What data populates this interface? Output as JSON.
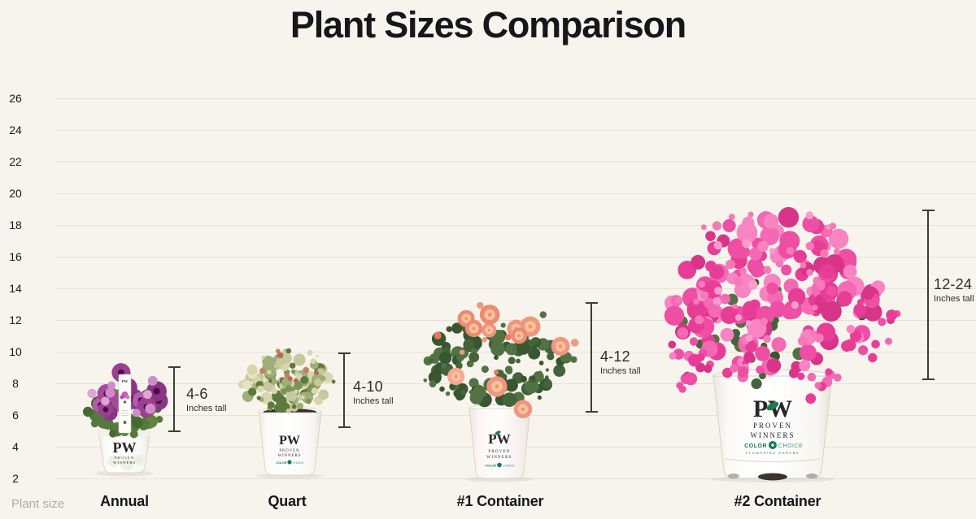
{
  "chart_data": {
    "type": "pictorial-bar",
    "title": "Plant Sizes Comparison",
    "xlabel": "Plant size",
    "ylabel": "",
    "units_label": "Inches tall",
    "y_axis": {
      "ticks": [
        26,
        24,
        22,
        20,
        18,
        16,
        14,
        12,
        10,
        8,
        6,
        4,
        2
      ],
      "min": 2,
      "max": 26,
      "step": 2,
      "grid": true
    },
    "categories": [
      "Annual",
      "Quart",
      "#1 Container",
      "#2 Container"
    ],
    "plants": [
      {
        "category": "Annual",
        "height_range": "4-6",
        "min_inches": 4,
        "max_inches": 6,
        "flower_color": "#a8489c"
      },
      {
        "category": "Quart",
        "height_range": "4-10",
        "min_inches": 4,
        "max_inches": 10,
        "flower_color": "#c6c99c"
      },
      {
        "category": "#1 Container",
        "height_range": "4-12",
        "min_inches": 4,
        "max_inches": 12,
        "flower_color": "#f0967c"
      },
      {
        "category": "#2 Container",
        "height_range": "12-24",
        "min_inches": 12,
        "max_inches": 24,
        "flower_color": "#ee4fa4"
      }
    ]
  },
  "branding": {
    "pw": "PW",
    "proven": "PROVEN",
    "winners": "WINNERS",
    "color": "COLOR",
    "choice": "CHOICE",
    "flowering_shrubs": "FLOWERING SHRUBS"
  },
  "colors": {
    "bg": "#f7f4ed",
    "grid": "#e5e2d9",
    "ink": "#17171b",
    "muted": "#aeaa9f",
    "measure": "#3e3d37",
    "measure_text": "#2e2e29",
    "pot_white": "#ffffff",
    "cc_green": "#157a52"
  },
  "palettes": {
    "foliage": [
      "#55793c",
      "#466a33",
      "#5f8443"
    ],
    "foliage_dark": [
      "#44633a",
      "#385630",
      "#527243"
    ],
    "annual_flowers": [
      "#a8489c",
      "#99408f",
      "#b55bae",
      "#8a3585"
    ],
    "annual_highlight": [
      "#cf8cc8",
      "#dda6d6"
    ],
    "annual_center": "#4a0d45",
    "quart_foliage": [
      "#d9d6ae",
      "#c6c99c",
      "#7d9455",
      "#5d7a3e",
      "#9fae79",
      "#e6e3c2"
    ],
    "quart_accent": [
      "#b06a5a",
      "#c47f66"
    ],
    "rose_flowers": [
      "#f0967c",
      "#ee8a70",
      "#f5a98f"
    ],
    "rose_mid": "#f8c0a8",
    "rose_core": "#e9a23c",
    "rose_buds": [
      "#e8795f",
      "#ef9a7e"
    ],
    "weigela_flowers": [
      "#ee4fa4",
      "#e83d97",
      "#f469b3",
      "#d8358a",
      "#f884c1"
    ],
    "weigela_light": [
      "#fa9dcb",
      "#f77ab8"
    ]
  }
}
